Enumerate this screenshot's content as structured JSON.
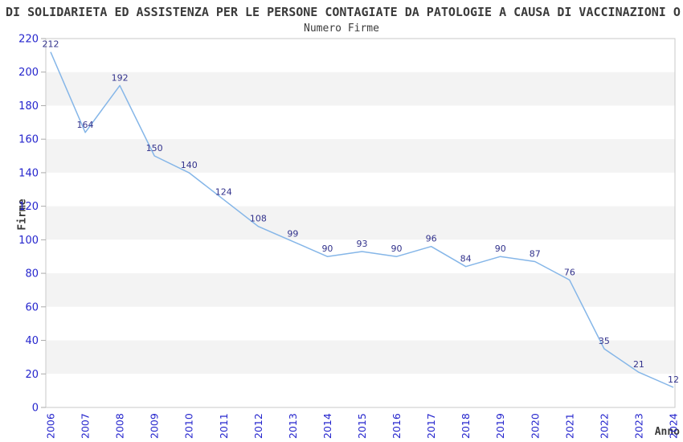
{
  "header": {
    "title": "DI SOLIDARIETA ED ASSISTENZA PER LE PERSONE CONTAGIATE DA PATOLOGIE A CAUSA DI VACCINAZIONI O",
    "subtitle": "Numero Firme"
  },
  "chart_data": {
    "type": "line",
    "title": "DI SOLIDARIETA ED ASSISTENZA PER LE PERSONE CONTAGIATE DA PATOLOGIE A CAUSA DI VACCINAZIONI O",
    "subtitle": "Numero Firme",
    "xlabel": "Anno",
    "ylabel": "Firme",
    "categories": [
      "2006",
      "2007",
      "2008",
      "2009",
      "2010",
      "2011",
      "2012",
      "2013",
      "2014",
      "2015",
      "2016",
      "2017",
      "2018",
      "2019",
      "2020",
      "2021",
      "2022",
      "2023",
      "2024"
    ],
    "values": [
      212,
      164,
      192,
      150,
      140,
      124,
      108,
      99,
      90,
      93,
      90,
      96,
      84,
      90,
      87,
      76,
      35,
      21,
      12
    ],
    "ylim": [
      0,
      220
    ],
    "yticks": [
      0,
      20,
      40,
      60,
      80,
      100,
      120,
      140,
      160,
      180,
      200,
      220
    ],
    "grid": "horizontal-alternating-bands",
    "legend": "none",
    "data_labels": true,
    "colors": {
      "line": "#85b6e8",
      "data_label": "#32328c",
      "tick_label": "#2525cd",
      "band": "#f3f3f3",
      "band_alt": "#ffffff",
      "plot_border": "#c9c9c9",
      "tick_mark": "#aaaaaa",
      "title_text": "#3a3a3a"
    }
  }
}
